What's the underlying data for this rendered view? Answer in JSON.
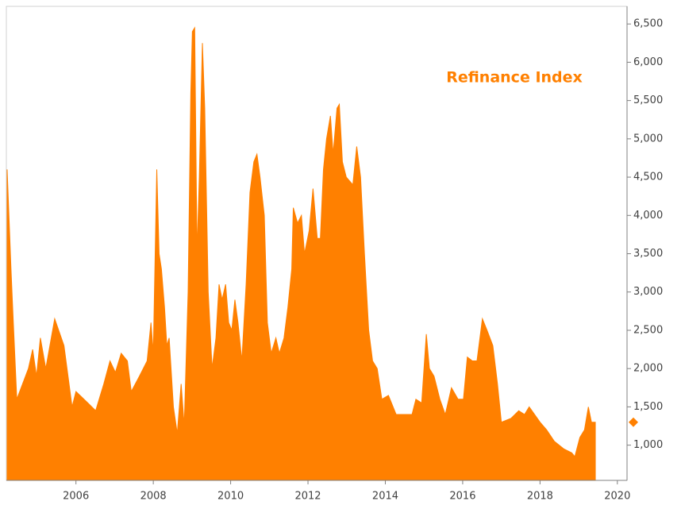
{
  "chart_data": {
    "type": "area",
    "annotation": "Refinance Index",
    "color": "#ff8000",
    "x": [
      2004.22,
      2004.32,
      2004.38,
      2004.47,
      2004.77,
      2004.88,
      2004.98,
      2005.08,
      2005.22,
      2005.45,
      2005.69,
      2005.9,
      2006.0,
      2006.31,
      2006.51,
      2006.72,
      2006.88,
      2007.02,
      2007.17,
      2007.33,
      2007.43,
      2007.64,
      2007.84,
      2007.94,
      2008.0,
      2008.09,
      2008.15,
      2008.21,
      2008.29,
      2008.35,
      2008.41,
      2008.52,
      2008.62,
      2008.72,
      2008.8,
      2008.9,
      2008.97,
      2009.01,
      2009.07,
      2009.13,
      2009.19,
      2009.27,
      2009.33,
      2009.42,
      2009.52,
      2009.62,
      2009.7,
      2009.78,
      2009.87,
      2009.95,
      2010.03,
      2010.11,
      2010.19,
      2010.29,
      2010.4,
      2010.5,
      2010.6,
      2010.68,
      2010.76,
      2010.87,
      2010.95,
      2011.05,
      2011.17,
      2011.26,
      2011.38,
      2011.48,
      2011.58,
      2011.62,
      2011.73,
      2011.83,
      2011.91,
      2012.03,
      2012.13,
      2012.24,
      2012.32,
      2012.4,
      2012.48,
      2012.58,
      2012.65,
      2012.75,
      2012.81,
      2012.89,
      2012.99,
      2013.16,
      2013.26,
      2013.36,
      2013.46,
      2013.57,
      2013.67,
      2013.79,
      2013.91,
      2014.08,
      2014.28,
      2014.49,
      2014.69,
      2014.79,
      2014.94,
      2015.06,
      2015.14,
      2015.26,
      2015.41,
      2015.55,
      2015.71,
      2015.88,
      2016.02,
      2016.12,
      2016.25,
      2016.37,
      2016.51,
      2016.63,
      2016.78,
      2016.9,
      2017.0,
      2017.25,
      2017.45,
      2017.6,
      2017.72,
      2017.86,
      2018.0,
      2018.17,
      2018.37,
      2018.62,
      2018.82,
      2018.9,
      2019.03,
      2019.15,
      2019.25,
      2019.33,
      2019.43
    ],
    "values": [
      4600,
      3300,
      2600,
      1600,
      2000,
      2250,
      1900,
      2400,
      2000,
      2650,
      2300,
      1500,
      1700,
      1550,
      1450,
      1800,
      2100,
      1950,
      2200,
      2100,
      1700,
      1900,
      2100,
      2600,
      2200,
      4600,
      3500,
      3300,
      2800,
      2300,
      2400,
      1500,
      1150,
      1800,
      1250,
      3000,
      5600,
      6400,
      6450,
      3500,
      4500,
      6250,
      5400,
      3000,
      2000,
      2400,
      3100,
      2900,
      3100,
      2600,
      2500,
      2900,
      2600,
      2100,
      3100,
      4300,
      4700,
      4800,
      4500,
      4000,
      2600,
      2200,
      2400,
      2200,
      2400,
      2800,
      3300,
      4100,
      3900,
      4000,
      3500,
      3800,
      4350,
      3700,
      3700,
      4600,
      5000,
      5300,
      4800,
      5400,
      5450,
      4700,
      4500,
      4400,
      4900,
      4500,
      3500,
      2500,
      2100,
      2000,
      1600,
      1650,
      1400,
      1400,
      1400,
      1600,
      1550,
      2450,
      2000,
      1900,
      1600,
      1400,
      1750,
      1600,
      1600,
      2150,
      2100,
      2100,
      2650,
      2500,
      2300,
      1800,
      1300,
      1350,
      1450,
      1400,
      1500,
      1400,
      1300,
      1200,
      1050,
      950,
      900,
      850,
      1100,
      1200,
      1500,
      1300,
      1300
    ],
    "last_value": 1300,
    "xlim": [
      2004.2,
      2020.25
    ],
    "xticks": [
      2006,
      2008,
      2010,
      2012,
      2014,
      2016,
      2018,
      2020
    ],
    "ylim": [
      540,
      6730
    ],
    "yticks": [
      {
        "value": 1000,
        "label": "1,000"
      },
      {
        "value": 1500,
        "label": "1,500"
      },
      {
        "value": 2000,
        "label": "2,000"
      },
      {
        "value": 2500,
        "label": "2,500"
      },
      {
        "value": 3000,
        "label": "3,000"
      },
      {
        "value": 3500,
        "label": "3,500"
      },
      {
        "value": 4000,
        "label": "4,000"
      },
      {
        "value": 4500,
        "label": "4,500"
      },
      {
        "value": 5000,
        "label": "5,000"
      },
      {
        "value": 5500,
        "label": "5,500"
      },
      {
        "value": 6000,
        "label": "6,000"
      },
      {
        "value": 6500,
        "label": "6,500"
      }
    ]
  }
}
